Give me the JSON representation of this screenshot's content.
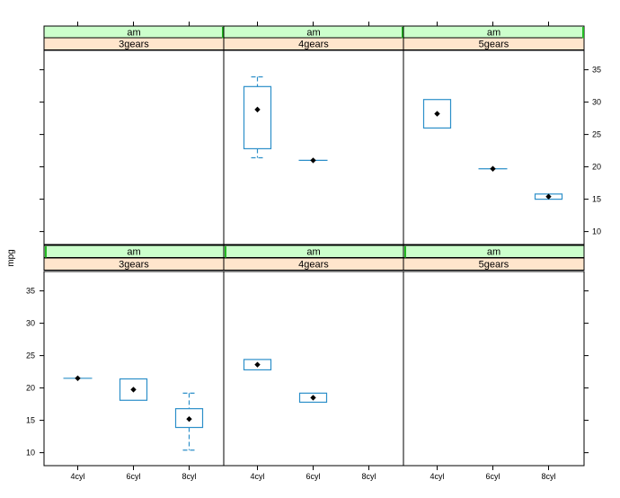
{
  "chart_data": {
    "type": "boxplot",
    "ylabel": "mpg",
    "ylim": [
      8,
      38
    ],
    "yticks": [
      10,
      15,
      20,
      25,
      30,
      35
    ],
    "categories": [
      "4cyl",
      "6cyl",
      "8cyl"
    ],
    "strip_colors": {
      "outer": "#ccffcc",
      "inner": "#ffe5cc",
      "indicator": "#22bb22"
    },
    "box_color": "#2c8fc9",
    "panels": [
      {
        "row": "top",
        "col": 0,
        "strip_outer": "am",
        "strip_inner": "3gears",
        "boxes": []
      },
      {
        "row": "top",
        "col": 1,
        "strip_outer": "am",
        "strip_inner": "4gears",
        "boxes": [
          {
            "category": "4cyl",
            "whisker_low": 21.4,
            "q1": 22.8,
            "median": 28.85,
            "q3": 32.4,
            "whisker_high": 33.9
          },
          {
            "category": "6cyl",
            "whisker_low": 21.0,
            "q1": 21.0,
            "median": 21.0,
            "q3": 21.0,
            "whisker_high": 21.0
          }
        ]
      },
      {
        "row": "top",
        "col": 2,
        "strip_outer": "am",
        "strip_inner": "5gears",
        "boxes": [
          {
            "category": "4cyl",
            "whisker_low": 26.0,
            "q1": 26.0,
            "median": 28.2,
            "q3": 30.4,
            "whisker_high": 30.4
          },
          {
            "category": "6cyl",
            "whisker_low": 19.7,
            "q1": 19.7,
            "median": 19.7,
            "q3": 19.7,
            "whisker_high": 19.7
          },
          {
            "category": "8cyl",
            "whisker_low": 15.0,
            "q1": 15.0,
            "median": 15.4,
            "q3": 15.8,
            "whisker_high": 15.8
          }
        ]
      },
      {
        "row": "bottom",
        "col": 0,
        "strip_outer": "am",
        "strip_inner": "3gears",
        "boxes": [
          {
            "category": "4cyl",
            "whisker_low": 21.5,
            "q1": 21.5,
            "median": 21.5,
            "q3": 21.5,
            "whisker_high": 21.5
          },
          {
            "category": "6cyl",
            "whisker_low": 18.1,
            "q1": 18.1,
            "median": 19.75,
            "q3": 21.4,
            "whisker_high": 21.4
          },
          {
            "category": "8cyl",
            "whisker_low": 10.4,
            "q1": 13.9,
            "median": 15.2,
            "q3": 16.8,
            "whisker_high": 19.2
          }
        ]
      },
      {
        "row": "bottom",
        "col": 1,
        "strip_outer": "am",
        "strip_inner": "4gears",
        "boxes": [
          {
            "category": "4cyl",
            "whisker_low": 22.8,
            "q1": 22.8,
            "median": 23.6,
            "q3": 24.4,
            "whisker_high": 24.4
          },
          {
            "category": "6cyl",
            "whisker_low": 17.8,
            "q1": 17.8,
            "median": 18.5,
            "q3": 19.2,
            "whisker_high": 19.2
          }
        ]
      },
      {
        "row": "bottom",
        "col": 2,
        "strip_outer": "am",
        "strip_inner": "5gears",
        "boxes": []
      }
    ]
  }
}
